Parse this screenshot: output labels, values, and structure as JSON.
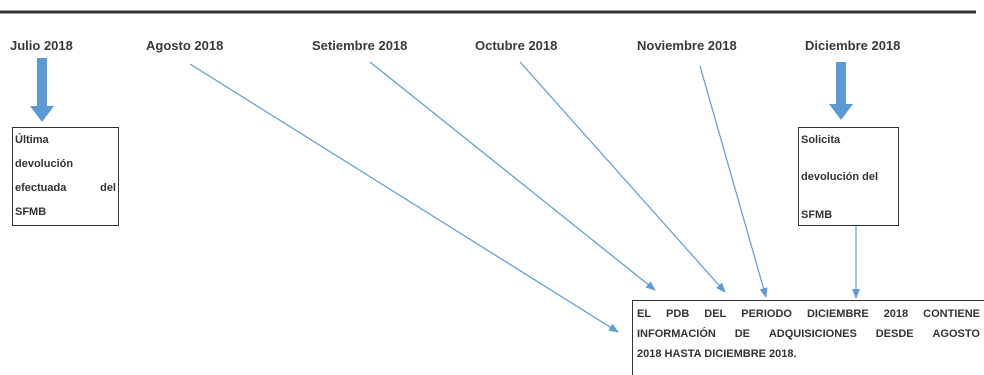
{
  "colors": {
    "arrow": "#5b9bd5",
    "timeline": "#333333",
    "box_border": "#333333"
  },
  "timeline": {
    "months": [
      "Julio 2018",
      "Agosto 2018",
      "Setiembre 2018",
      "Octubre 2018",
      "Noviembre 2018",
      "Diciembre 2018"
    ]
  },
  "boxes": {
    "last_refund": {
      "lines": [
        "Última",
        "devolución",
        "efectuada del",
        "SFMB"
      ]
    },
    "request": {
      "lines": [
        "Solicita",
        "devolución del",
        "SFMB"
      ]
    },
    "result": {
      "lines": [
        "EL PDB DEL PERIODO DICIEMBRE 2018 CONTIENE",
        "INFORMACIÓN DE ADQUISICIONES DESDE AGOSTO",
        "2018 HASTA DICIEMBRE 2018."
      ]
    }
  }
}
